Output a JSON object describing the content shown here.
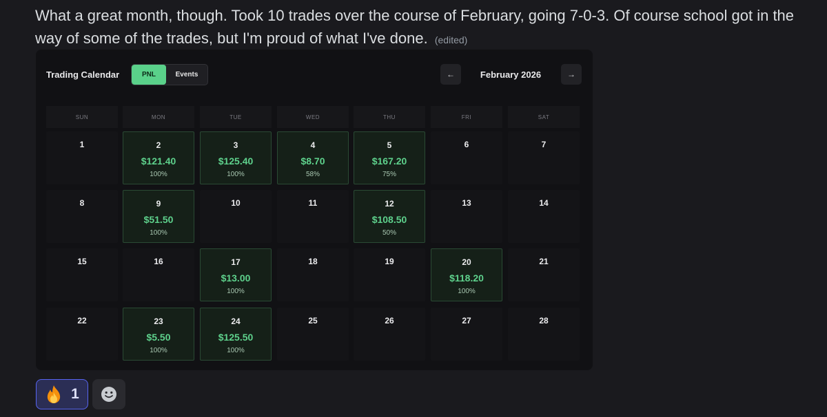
{
  "message": {
    "text": "What a great month, though. Took 10 trades over the course of February, going 7-0-3. Of course school got in the way of some of the trades, but I'm proud of what I've done.",
    "edited_label": "(edited)"
  },
  "calendar": {
    "title": "Trading Calendar",
    "toggle": {
      "pnl_label": "PNL",
      "events_label": "Events",
      "active": "PNL"
    },
    "nav": {
      "prev_icon": "arrow-left-icon",
      "next_icon": "arrow-right-icon",
      "prev_glyph": "←",
      "next_glyph": "→"
    },
    "month_label": "February 2026",
    "weekdays": [
      "SUN",
      "MON",
      "TUE",
      "WED",
      "THU",
      "FRI",
      "SAT"
    ],
    "weeks": [
      [
        {
          "day": "1"
        },
        {
          "day": "2",
          "pnl": "$121.40",
          "pct": "100%"
        },
        {
          "day": "3",
          "pnl": "$125.40",
          "pct": "100%"
        },
        {
          "day": "4",
          "pnl": "$8.70",
          "pct": "58%"
        },
        {
          "day": "5",
          "pnl": "$167.20",
          "pct": "75%"
        },
        {
          "day": "6"
        },
        {
          "day": "7"
        }
      ],
      [
        {
          "day": "8"
        },
        {
          "day": "9",
          "pnl": "$51.50",
          "pct": "100%"
        },
        {
          "day": "10"
        },
        {
          "day": "11"
        },
        {
          "day": "12",
          "pnl": "$108.50",
          "pct": "50%"
        },
        {
          "day": "13"
        },
        {
          "day": "14"
        }
      ],
      [
        {
          "day": "15"
        },
        {
          "day": "16"
        },
        {
          "day": "17",
          "pnl": "$13.00",
          "pct": "100%"
        },
        {
          "day": "18"
        },
        {
          "day": "19"
        },
        {
          "day": "20",
          "pnl": "$118.20",
          "pct": "100%"
        },
        {
          "day": "21"
        }
      ],
      [
        {
          "day": "22"
        },
        {
          "day": "23",
          "pnl": "$5.50",
          "pct": "100%"
        },
        {
          "day": "24",
          "pnl": "$125.50",
          "pct": "100%"
        },
        {
          "day": "25"
        },
        {
          "day": "26"
        },
        {
          "day": "27"
        },
        {
          "day": "28"
        }
      ]
    ]
  },
  "reactions": {
    "fire": {
      "icon": "fire-emoji-icon",
      "count": "1"
    },
    "add_icon": "smiley-add-reaction-icon"
  },
  "colors": {
    "profit_green": "#5ed18c",
    "toggle_active": "#5ad18a",
    "reaction_accent": "#5865f2"
  }
}
